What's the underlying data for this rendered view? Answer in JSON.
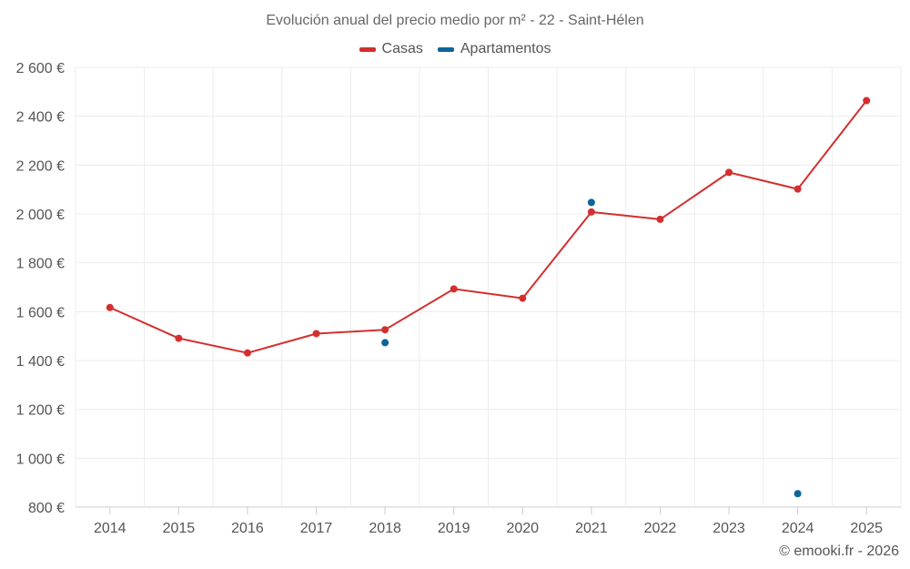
{
  "chart_data": {
    "type": "line",
    "title": "Evolución anual del precio medio por m² - 22 - Saint-Hélen",
    "categories": [
      "2014",
      "2015",
      "2016",
      "2017",
      "2018",
      "2019",
      "2020",
      "2021",
      "2022",
      "2023",
      "2024",
      "2025"
    ],
    "ylim": [
      800,
      2600
    ],
    "yticks": [
      800,
      1000,
      1200,
      1400,
      1600,
      1800,
      2000,
      2200,
      2400,
      2600
    ],
    "ytick_labels": [
      "800 €",
      "1 000 €",
      "1 200 €",
      "1 400 €",
      "1 600 €",
      "1 800 €",
      "2 000 €",
      "2 200 €",
      "2 400 €",
      "2 600 €"
    ],
    "xlabel": "",
    "ylabel": "",
    "grid": true,
    "legend_position": "top-center",
    "series": [
      {
        "name": "Casas",
        "color": "#d32f2f",
        "line": true,
        "values": [
          1617,
          1491,
          1431,
          1510,
          1526,
          1693,
          1655,
          2008,
          1978,
          2170,
          2102,
          2464
        ]
      },
      {
        "name": "Apartamentos",
        "color": "#0b6599",
        "line": false,
        "values": [
          null,
          null,
          null,
          null,
          1473,
          null,
          null,
          2047,
          null,
          null,
          855,
          null
        ]
      }
    ]
  },
  "footer": {
    "credit": "© emooki.fr - 2026"
  }
}
